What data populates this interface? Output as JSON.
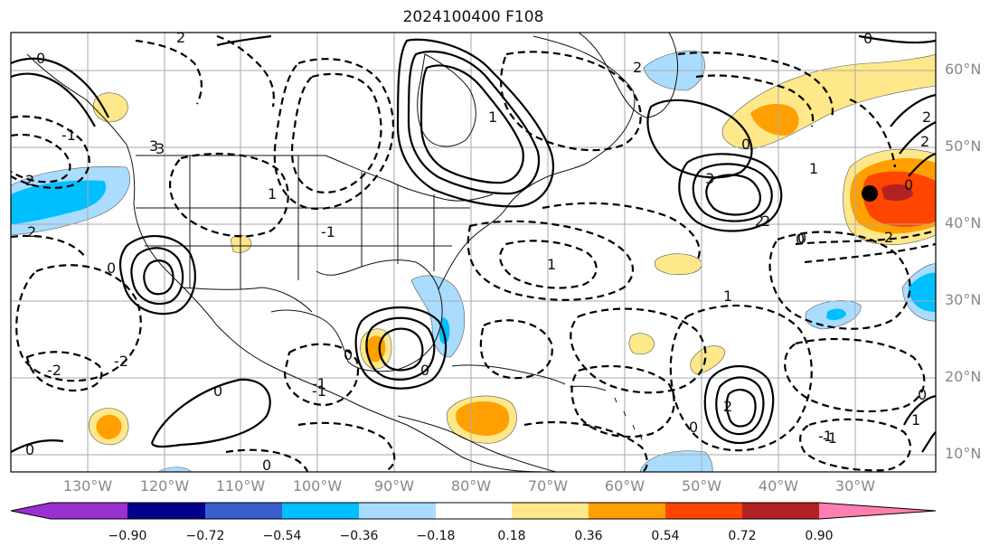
{
  "title": "2024100400 F108",
  "lat_labels": [
    "60°N",
    "50°N",
    "40°N",
    "30°N",
    "20°N",
    "10°N"
  ],
  "lon_labels": [
    "130°W",
    "120°W",
    "110°W",
    "100°W",
    "90°W",
    "80°W",
    "70°W",
    "60°W",
    "50°W",
    "40°W",
    "30°W"
  ],
  "colorbar": {
    "ticks": [
      "−0.90",
      "−0.72",
      "−0.54",
      "−0.36",
      "−0.18",
      "0.18",
      "0.36",
      "0.54",
      "0.72",
      "0.90"
    ],
    "colors": [
      "#9b30d0",
      "#00008b",
      "#3a5fcd",
      "#00bfff",
      "#aadcff",
      "#ffffff",
      "#ffe88a",
      "#ffa000",
      "#ff4500",
      "#b22222",
      "#ff80b0"
    ]
  },
  "contour_labels": [
    "0",
    "2",
    "3",
    "1",
    "2",
    "0",
    "0",
    "1",
    "2",
    "3",
    "0",
    "1",
    "1",
    "2",
    "0",
    "-1",
    "-1",
    "0",
    "0",
    "1",
    "2",
    "3",
    "0",
    "2",
    "0",
    "0",
    "1",
    "2",
    "2",
    "2",
    "-1",
    "-1",
    "0",
    "0",
    "0",
    "-2",
    "-2",
    "-1",
    "0",
    "-1",
    "2"
  ]
}
